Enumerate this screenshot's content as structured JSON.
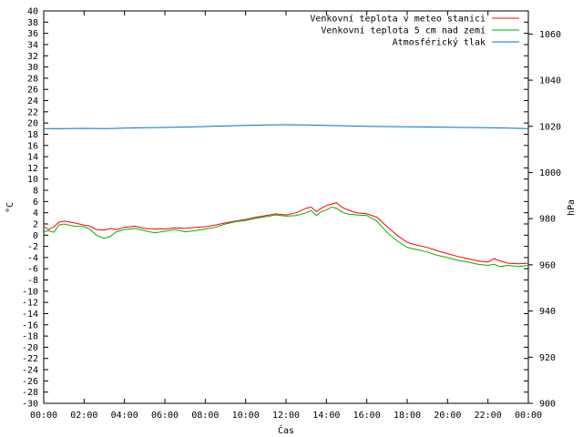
{
  "chart_data": {
    "type": "line",
    "xlabel": "Čas",
    "ylabel": "°C",
    "y2label": "hPa",
    "x_ticks": [
      "00:00",
      "02:00",
      "04:00",
      "06:00",
      "08:00",
      "10:00",
      "12:00",
      "14:00",
      "16:00",
      "18:00",
      "20:00",
      "22:00",
      "00:00"
    ],
    "xlim": [
      0,
      24
    ],
    "ylim": [
      -30,
      40
    ],
    "y_ticks": [
      -30,
      -28,
      -26,
      -24,
      -22,
      -20,
      -18,
      -16,
      -14,
      -12,
      -10,
      -8,
      -6,
      -4,
      -2,
      0,
      2,
      4,
      6,
      8,
      10,
      12,
      14,
      16,
      18,
      20,
      22,
      24,
      26,
      28,
      30,
      32,
      34,
      36,
      38,
      40
    ],
    "y2lim": [
      900,
      1070
    ],
    "y2_ticks": [
      900,
      920,
      940,
      960,
      980,
      1000,
      1020,
      1040,
      1060
    ],
    "grid": false,
    "legend_position": "top-right",
    "series": [
      {
        "name": "Venkovní teplota v meteo stanici",
        "color": "#ff0000",
        "axis": "y",
        "x": [
          0,
          0.25,
          0.5,
          0.75,
          1,
          1.5,
          2,
          2.3,
          2.6,
          3,
          3.3,
          3.6,
          4,
          4.5,
          5,
          5.5,
          6,
          6.5,
          7,
          7.5,
          8,
          8.5,
          9,
          9.5,
          10,
          10.5,
          11,
          11.5,
          12,
          12.5,
          13,
          13.25,
          13.5,
          13.75,
          14,
          14.25,
          14.5,
          14.75,
          15,
          15.5,
          16,
          16.5,
          17,
          17.5,
          18,
          18.5,
          19,
          19.5,
          20,
          20.5,
          21,
          21.5,
          22,
          22.3,
          22.6,
          23,
          23.5,
          24
        ],
        "values": [
          1.5,
          1.0,
          1.5,
          2.3,
          2.5,
          2.2,
          1.8,
          1.6,
          1.0,
          0.9,
          1.2,
          1.0,
          1.4,
          1.6,
          1.2,
          1.1,
          1.1,
          1.3,
          1.2,
          1.4,
          1.5,
          1.8,
          2.2,
          2.5,
          2.8,
          3.2,
          3.5,
          3.8,
          3.6,
          4.0,
          4.8,
          5.0,
          4.2,
          4.8,
          5.3,
          5.5,
          5.8,
          5.0,
          4.6,
          4.0,
          3.8,
          3.2,
          1.5,
          0.0,
          -1.3,
          -1.8,
          -2.2,
          -2.8,
          -3.3,
          -3.8,
          -4.2,
          -4.6,
          -4.8,
          -4.2,
          -4.6,
          -5.0,
          -5.1,
          -5.0
        ]
      },
      {
        "name": "Venkovní teplota 5 cm nad zemí",
        "color": "#00b000",
        "axis": "y",
        "x": [
          0,
          0.25,
          0.5,
          0.75,
          1,
          1.5,
          2,
          2.3,
          2.6,
          3,
          3.3,
          3.6,
          4,
          4.5,
          5,
          5.5,
          6,
          6.5,
          7,
          7.5,
          8,
          8.5,
          9,
          9.5,
          10,
          10.5,
          11,
          11.5,
          12,
          12.5,
          13,
          13.25,
          13.5,
          13.75,
          14,
          14.25,
          14.5,
          14.75,
          15,
          15.5,
          16,
          16.5,
          17,
          17.5,
          18,
          18.5,
          19,
          19.5,
          20,
          20.5,
          21,
          21.5,
          22,
          22.3,
          22.6,
          23,
          23.5,
          24
        ],
        "values": [
          0.6,
          0.8,
          0.5,
          1.8,
          2.0,
          1.6,
          1.5,
          1.0,
          0.0,
          -0.6,
          -0.2,
          0.6,
          1.0,
          1.2,
          0.8,
          0.4,
          0.7,
          1.0,
          0.6,
          0.8,
          1.1,
          1.4,
          2.0,
          2.4,
          2.6,
          3.0,
          3.3,
          3.6,
          3.4,
          3.5,
          4.0,
          4.4,
          3.5,
          4.2,
          4.5,
          5.0,
          4.8,
          4.2,
          3.8,
          3.6,
          3.5,
          2.5,
          0.5,
          -1.0,
          -2.2,
          -2.6,
          -3.0,
          -3.6,
          -4.0,
          -4.5,
          -4.8,
          -5.2,
          -5.4,
          -5.2,
          -5.6,
          -5.4,
          -5.6,
          -5.4
        ]
      },
      {
        "name": "Atmosférický tlak",
        "color": "#0070c0",
        "axis": "y2",
        "x": [
          0,
          1,
          2,
          3,
          4,
          5,
          6,
          7,
          8,
          9,
          10,
          11,
          12,
          13,
          14,
          15,
          16,
          17,
          18,
          19,
          20,
          21,
          22,
          23,
          24
        ],
        "values": [
          1019.0,
          1019.0,
          1019.1,
          1019.0,
          1019.2,
          1019.4,
          1019.5,
          1019.7,
          1019.9,
          1020.2,
          1020.4,
          1020.6,
          1020.7,
          1020.6,
          1020.4,
          1020.2,
          1020.0,
          1019.9,
          1019.8,
          1019.7,
          1019.6,
          1019.5,
          1019.4,
          1019.2,
          1019.0
        ]
      }
    ]
  }
}
